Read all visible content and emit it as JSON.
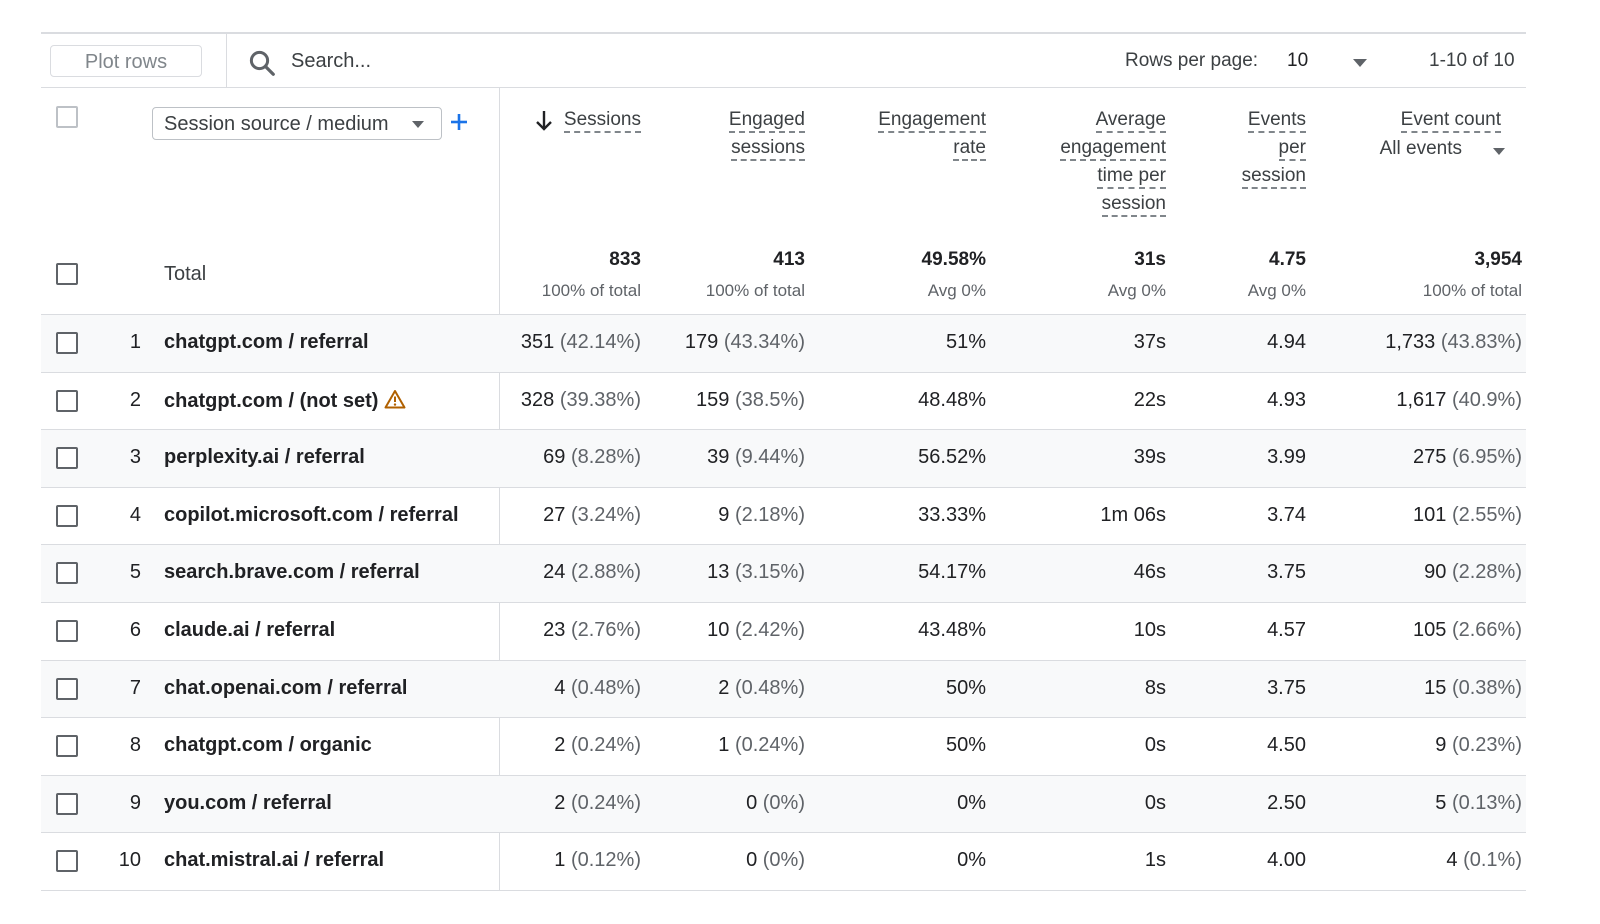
{
  "toolbar": {
    "plot_rows_label": "Plot rows",
    "search_placeholder": "Search...",
    "rows_per_page_label": "Rows per page:",
    "rows_per_page_value": "10",
    "pagination": "1-10 of 10"
  },
  "dimension": {
    "selected": "Session source / medium"
  },
  "columns": {
    "sessions": [
      "Sessions"
    ],
    "engaged_sessions": [
      "Engaged",
      "sessions"
    ],
    "engagement_rate": [
      "Engagement",
      "rate"
    ],
    "avg_engagement_time": [
      "Average",
      "engagement",
      "time per",
      "session"
    ],
    "events_per_session": [
      "Events",
      "per",
      "session"
    ],
    "event_count": [
      "Event count"
    ],
    "event_count_filter": "All events"
  },
  "totals": {
    "label": "Total",
    "sessions": {
      "value": "833",
      "sub": "100% of total"
    },
    "engaged_sessions": {
      "value": "413",
      "sub": "100% of total"
    },
    "engagement_rate": {
      "value": "49.58%",
      "sub": "Avg 0%"
    },
    "avg_engagement_time": {
      "value": "31s",
      "sub": "Avg 0%"
    },
    "events_per_session": {
      "value": "4.75",
      "sub": "Avg 0%"
    },
    "event_count": {
      "value": "3,954",
      "sub": "100% of total"
    }
  },
  "rows": [
    {
      "num": "1",
      "source": "chatgpt.com / referral",
      "warning": false,
      "sessions": "351",
      "sessions_pct": "(42.14%)",
      "engaged": "179",
      "engaged_pct": "(43.34%)",
      "rate": "51%",
      "time": "37s",
      "eps": "4.94",
      "events": "1,733",
      "events_pct": "(43.83%)"
    },
    {
      "num": "2",
      "source": "chatgpt.com / (not set)",
      "warning": true,
      "sessions": "328",
      "sessions_pct": "(39.38%)",
      "engaged": "159",
      "engaged_pct": "(38.5%)",
      "rate": "48.48%",
      "time": "22s",
      "eps": "4.93",
      "events": "1,617",
      "events_pct": "(40.9%)"
    },
    {
      "num": "3",
      "source": "perplexity.ai / referral",
      "warning": false,
      "sessions": "69",
      "sessions_pct": "(8.28%)",
      "engaged": "39",
      "engaged_pct": "(9.44%)",
      "rate": "56.52%",
      "time": "39s",
      "eps": "3.99",
      "events": "275",
      "events_pct": "(6.95%)"
    },
    {
      "num": "4",
      "source": "copilot.microsoft.com / referral",
      "warning": false,
      "sessions": "27",
      "sessions_pct": "(3.24%)",
      "engaged": "9",
      "engaged_pct": "(2.18%)",
      "rate": "33.33%",
      "time": "1m 06s",
      "eps": "3.74",
      "events": "101",
      "events_pct": "(2.55%)"
    },
    {
      "num": "5",
      "source": "search.brave.com / referral",
      "warning": false,
      "sessions": "24",
      "sessions_pct": "(2.88%)",
      "engaged": "13",
      "engaged_pct": "(3.15%)",
      "rate": "54.17%",
      "time": "46s",
      "eps": "3.75",
      "events": "90",
      "events_pct": "(2.28%)"
    },
    {
      "num": "6",
      "source": "claude.ai / referral",
      "warning": false,
      "sessions": "23",
      "sessions_pct": "(2.76%)",
      "engaged": "10",
      "engaged_pct": "(2.42%)",
      "rate": "43.48%",
      "time": "10s",
      "eps": "4.57",
      "events": "105",
      "events_pct": "(2.66%)"
    },
    {
      "num": "7",
      "source": "chat.openai.com / referral",
      "warning": false,
      "sessions": "4",
      "sessions_pct": "(0.48%)",
      "engaged": "2",
      "engaged_pct": "(0.48%)",
      "rate": "50%",
      "time": "8s",
      "eps": "3.75",
      "events": "15",
      "events_pct": "(0.38%)"
    },
    {
      "num": "8",
      "source": "chatgpt.com / organic",
      "warning": false,
      "sessions": "2",
      "sessions_pct": "(0.24%)",
      "engaged": "1",
      "engaged_pct": "(0.24%)",
      "rate": "50%",
      "time": "0s",
      "eps": "4.50",
      "events": "9",
      "events_pct": "(0.23%)"
    },
    {
      "num": "9",
      "source": "you.com / referral",
      "warning": false,
      "sessions": "2",
      "sessions_pct": "(0.24%)",
      "engaged": "0",
      "engaged_pct": "(0%)",
      "rate": "0%",
      "time": "0s",
      "eps": "2.50",
      "events": "5",
      "events_pct": "(0.13%)"
    },
    {
      "num": "10",
      "source": "chat.mistral.ai / referral",
      "warning": false,
      "sessions": "1",
      "sessions_pct": "(0.12%)",
      "engaged": "0",
      "engaged_pct": "(0%)",
      "rate": "0%",
      "time": "1s",
      "eps": "4.00",
      "events": "4",
      "events_pct": "(0.1%)"
    }
  ],
  "colors": {
    "accent": "#1a73e8",
    "warning": "#b06000",
    "row_alt": "#f8f9fa",
    "divider": "#dadce0"
  },
  "icons": {
    "search": "search-icon",
    "sort": "arrow-down-icon",
    "add": "plus-icon",
    "warning": "warning-triangle-icon"
  }
}
